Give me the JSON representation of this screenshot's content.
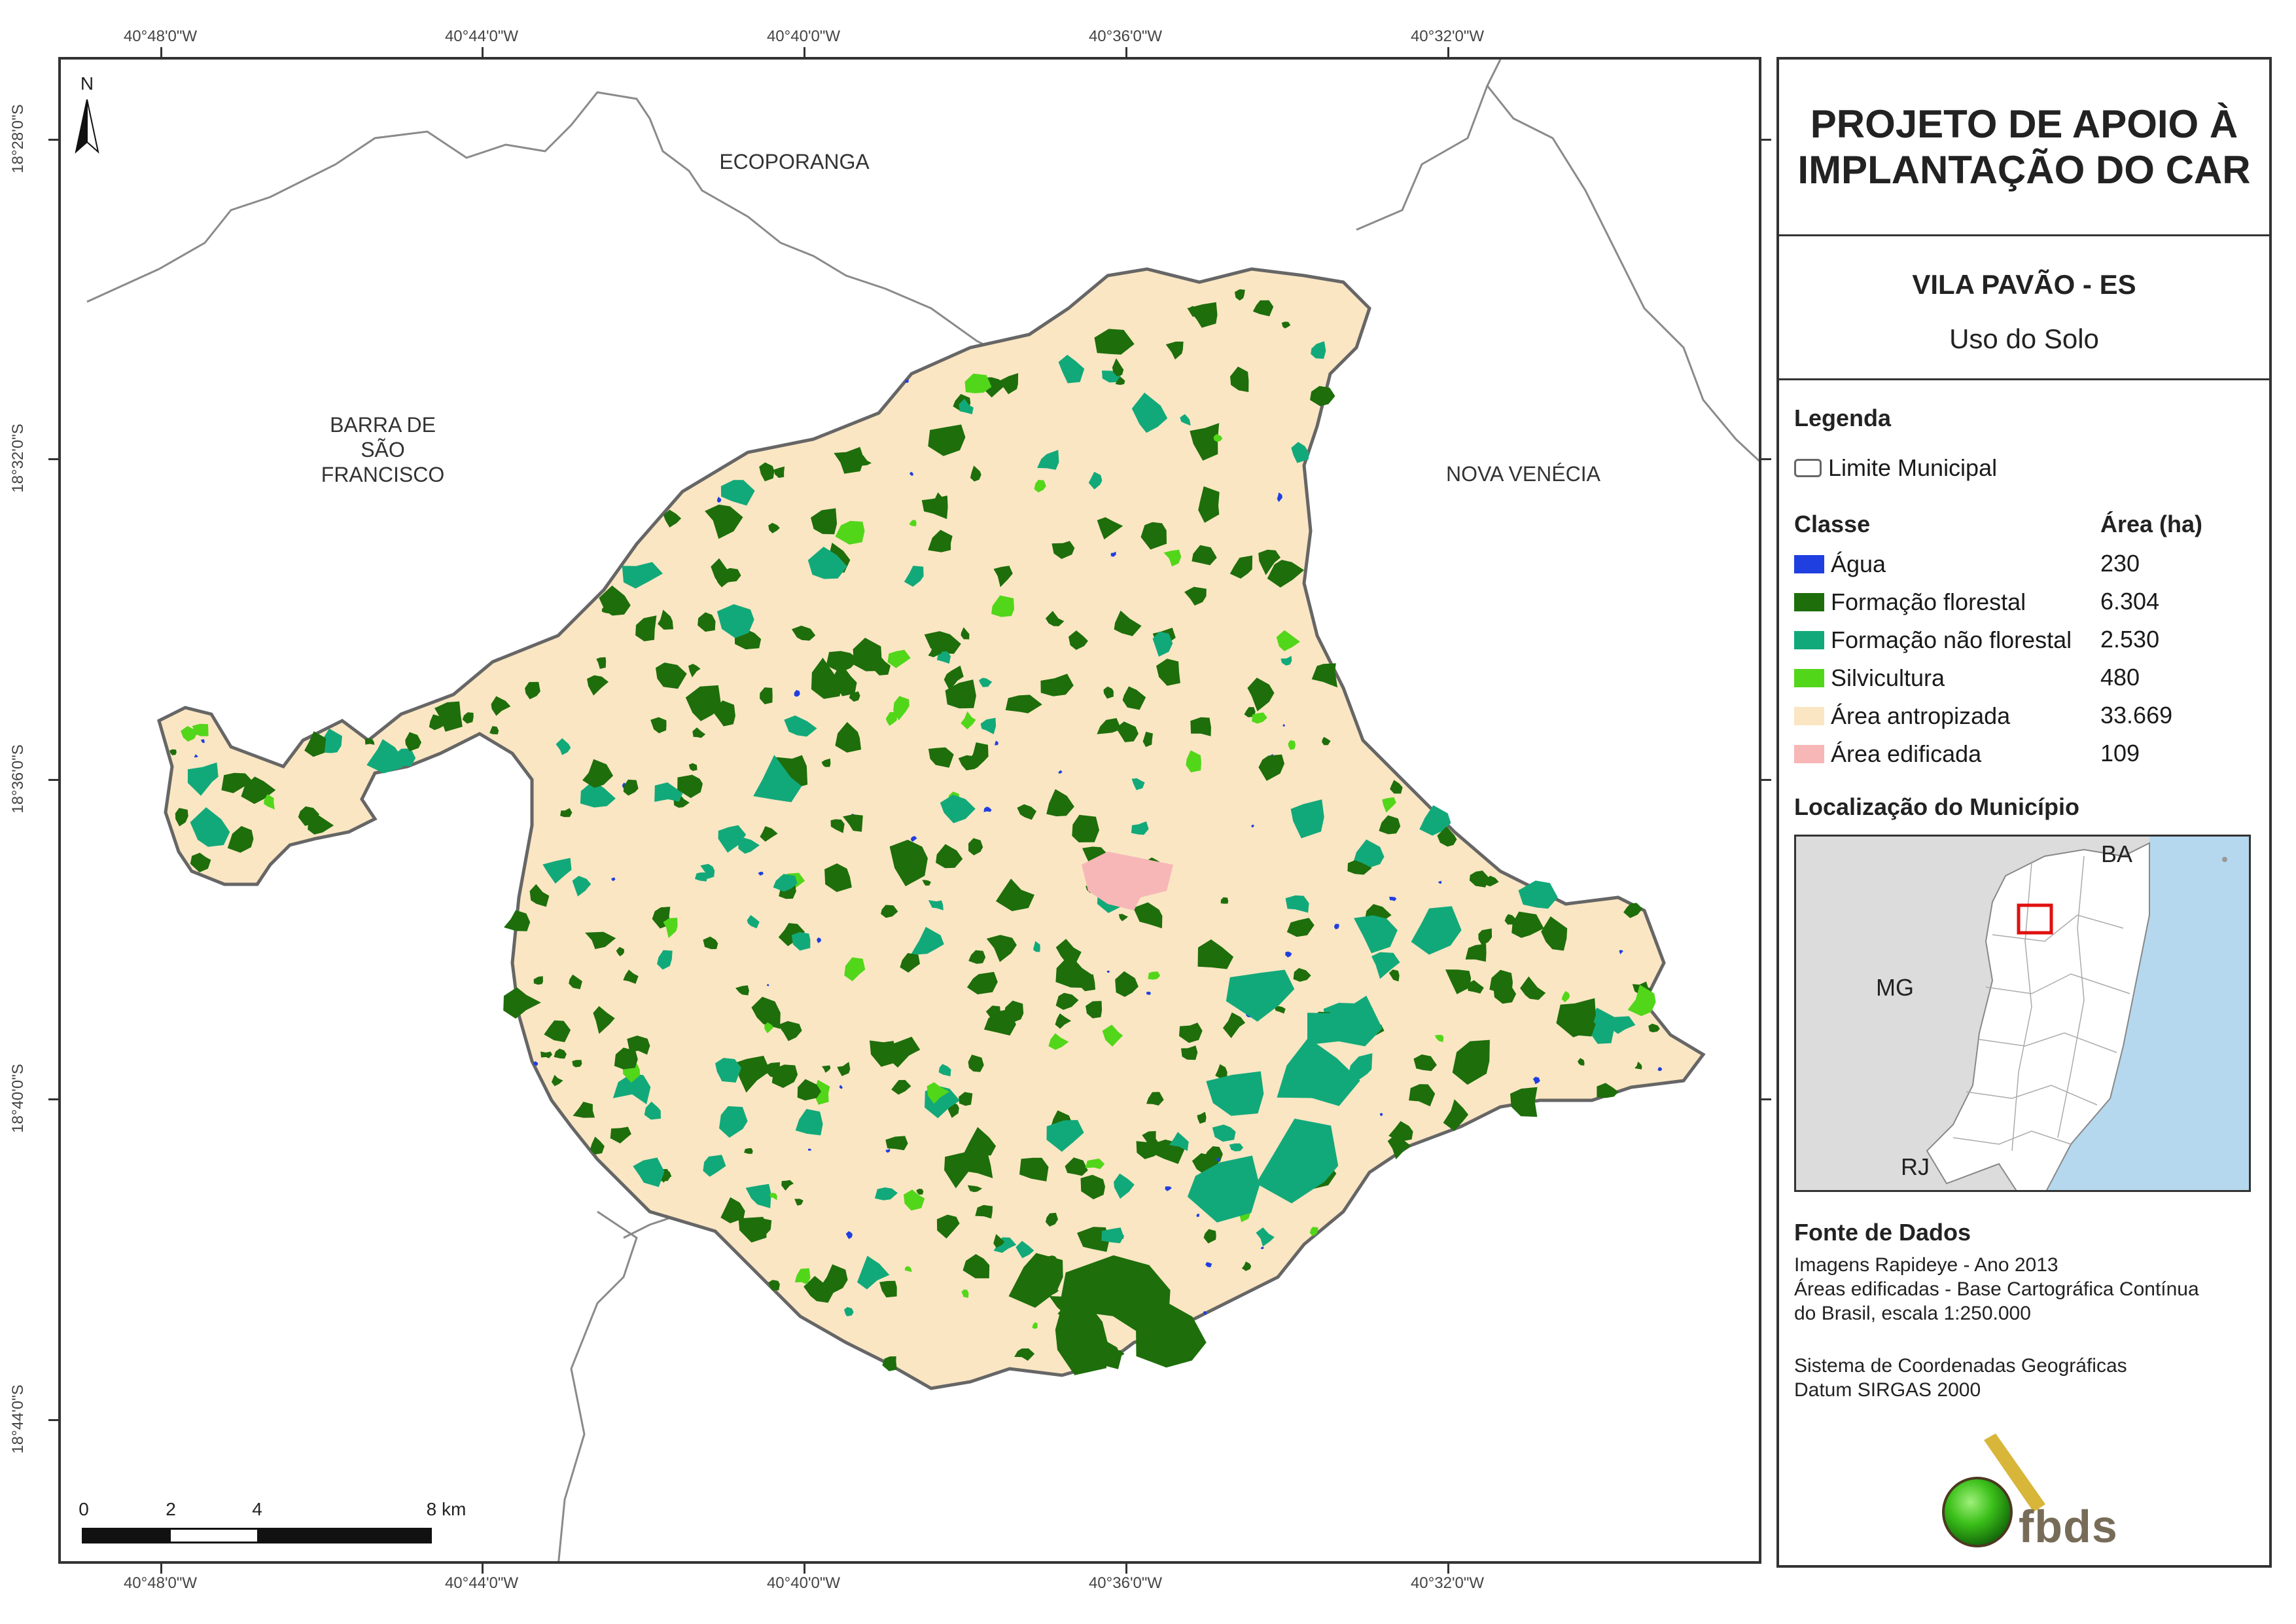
{
  "map": {
    "neighbors": {
      "ecoporanga": "ECOPORANGA",
      "barra_sao_francisco": [
        "BARRA DE",
        "SÃO",
        "FRANCISCO"
      ],
      "nova_venecia": "NOVA VENÉCIA"
    },
    "north_letter": "N",
    "coords_top": [
      "40°48'0\"W",
      "40°44'0\"W",
      "40°40'0\"W",
      "40°36'0\"W",
      "40°32'0\"W"
    ],
    "coords_bottom": [
      "40°48'0\"W",
      "40°44'0\"W",
      "40°40'0\"W",
      "40°36'0\"W",
      "40°32'0\"W"
    ],
    "coords_left": [
      "18°28'0\"S",
      "18°32'0\"S",
      "18°36'0\"S",
      "18°40'0\"S",
      "18°44'0\"S"
    ],
    "scale": {
      "labels": [
        "0",
        "2",
        "4",
        "8 km"
      ]
    },
    "colors": {
      "agua": "#1f3fe0",
      "formacao_florestal": "#1e6e0c",
      "formacao_nao_florestal": "#12a97a",
      "silvicultura": "#52d61a",
      "area_antropizada": "#fae6c3",
      "area_edificada": "#f8b7b7"
    }
  },
  "panel": {
    "title": [
      "PROJETO DE APOIO À",
      "IMPLANTAÇÃO DO CAR"
    ],
    "municipio": "VILA PAVÃO - ES",
    "tema": "Uso do Solo",
    "legenda_heading": "Legenda",
    "limite_label": "Limite Municipal",
    "classe_heading": "Classe",
    "area_heading": "Área (ha)",
    "classes": [
      {
        "label": "Água",
        "area": "230",
        "color": "#1f3fe0"
      },
      {
        "label": "Formação florestal",
        "area": "6.304",
        "color": "#1e6e0c"
      },
      {
        "label": "Formação não florestal",
        "area": "2.530",
        "color": "#12a97a"
      },
      {
        "label": "Silvicultura",
        "area": "480",
        "color": "#52d61a"
      },
      {
        "label": "Área antropizada",
        "area": "33.669",
        "color": "#fae6c3"
      },
      {
        "label": "Área edificada",
        "area": "109",
        "color": "#f8b7b7"
      }
    ],
    "localizacao_heading": "Localização do Município",
    "inset_labels": {
      "ba": "BA",
      "mg": "MG",
      "rj": "RJ"
    },
    "fonte_heading": "Fonte de Dados",
    "fonte_lines": [
      "Imagens Rapideye - Ano 2013",
      "Áreas edificadas - Base Cartográfica Contínua",
      "do Brasil, escala 1:250.000"
    ],
    "sistema_lines": [
      "Sistema de Coordenadas Geográficas",
      "Datum SIRGAS 2000"
    ],
    "logo_text": "fbds"
  }
}
